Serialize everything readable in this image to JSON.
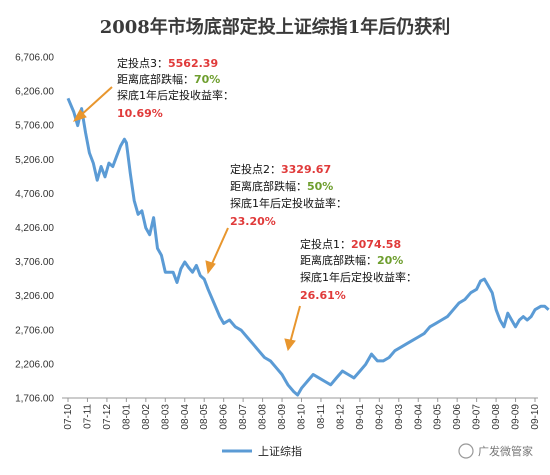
{
  "chart_data": {
    "type": "line",
    "title": "2008年市场底部定投上证综指1年后仍获利",
    "ylim": [
      1706,
      6706
    ],
    "yticks": [
      "1,706.00",
      "2,206.00",
      "2,706.00",
      "3,206.00",
      "3,706.00",
      "4,206.00",
      "4,706.00",
      "5,206.00",
      "5,706.00",
      "6,206.00",
      "6,706.00"
    ],
    "xticks": [
      "07-10",
      "07-11",
      "07-12",
      "08-01",
      "08-02",
      "08-03",
      "08-04",
      "08-05",
      "08-06",
      "08-07",
      "08-08",
      "08-09",
      "08-10",
      "08-11",
      "08-12",
      "09-01",
      "09-02",
      "09-03",
      "09-04",
      "09-05",
      "09-06",
      "09-07",
      "09-08",
      "09-09",
      "09-10"
    ],
    "grid": false,
    "legend": "bottom",
    "series": [
      {
        "name": "上证综指",
        "color": "#5b9bd5",
        "points": [
          [
            0,
            6100
          ],
          [
            0.3,
            5900
          ],
          [
            0.5,
            5700
          ],
          [
            0.7,
            5950
          ],
          [
            0.9,
            5600
          ],
          [
            1.1,
            5300
          ],
          [
            1.3,
            5150
          ],
          [
            1.5,
            4900
          ],
          [
            1.7,
            5100
          ],
          [
            1.9,
            4950
          ],
          [
            2.1,
            5150
          ],
          [
            2.3,
            5100
          ],
          [
            2.5,
            5250
          ],
          [
            2.7,
            5400
          ],
          [
            2.9,
            5500
          ],
          [
            3.0,
            5450
          ],
          [
            3.2,
            5000
          ],
          [
            3.4,
            4600
          ],
          [
            3.6,
            4400
          ],
          [
            3.8,
            4450
          ],
          [
            4.0,
            4200
          ],
          [
            4.2,
            4100
          ],
          [
            4.4,
            4350
          ],
          [
            4.6,
            3900
          ],
          [
            4.8,
            3800
          ],
          [
            5.0,
            3550
          ],
          [
            5.2,
            3550
          ],
          [
            5.4,
            3550
          ],
          [
            5.6,
            3400
          ],
          [
            5.8,
            3600
          ],
          [
            6.0,
            3700
          ],
          [
            6.2,
            3620
          ],
          [
            6.4,
            3550
          ],
          [
            6.6,
            3650
          ],
          [
            6.8,
            3500
          ],
          [
            7.0,
            3450
          ],
          [
            7.2,
            3300
          ],
          [
            7.5,
            3100
          ],
          [
            7.8,
            2900
          ],
          [
            8.0,
            2800
          ],
          [
            8.3,
            2850
          ],
          [
            8.6,
            2750
          ],
          [
            8.9,
            2700
          ],
          [
            9.2,
            2600
          ],
          [
            9.5,
            2500
          ],
          [
            9.8,
            2400
          ],
          [
            10.1,
            2300
          ],
          [
            10.4,
            2250
          ],
          [
            10.7,
            2150
          ],
          [
            11.0,
            2050
          ],
          [
            11.3,
            1900
          ],
          [
            11.6,
            1800
          ],
          [
            11.8,
            1750
          ],
          [
            12.0,
            1850
          ],
          [
            12.3,
            1950
          ],
          [
            12.6,
            2050
          ],
          [
            12.9,
            2000
          ],
          [
            13.2,
            1950
          ],
          [
            13.5,
            1900
          ],
          [
            13.8,
            2000
          ],
          [
            14.1,
            2100
          ],
          [
            14.4,
            2050
          ],
          [
            14.7,
            2000
          ],
          [
            15.0,
            2100
          ],
          [
            15.3,
            2200
          ],
          [
            15.6,
            2350
          ],
          [
            15.9,
            2250
          ],
          [
            16.2,
            2250
          ],
          [
            16.5,
            2300
          ],
          [
            16.8,
            2400
          ],
          [
            17.1,
            2450
          ],
          [
            17.4,
            2500
          ],
          [
            17.7,
            2550
          ],
          [
            18.0,
            2600
          ],
          [
            18.3,
            2650
          ],
          [
            18.6,
            2750
          ],
          [
            18.9,
            2800
          ],
          [
            19.2,
            2850
          ],
          [
            19.5,
            2900
          ],
          [
            19.8,
            3000
          ],
          [
            20.1,
            3100
          ],
          [
            20.4,
            3150
          ],
          [
            20.7,
            3250
          ],
          [
            21.0,
            3300
          ],
          [
            21.2,
            3420
          ],
          [
            21.4,
            3450
          ],
          [
            21.6,
            3350
          ],
          [
            21.8,
            3250
          ],
          [
            22.0,
            3000
          ],
          [
            22.2,
            2850
          ],
          [
            22.4,
            2750
          ],
          [
            22.6,
            2950
          ],
          [
            22.8,
            2850
          ],
          [
            23.0,
            2750
          ],
          [
            23.2,
            2850
          ],
          [
            23.4,
            2900
          ],
          [
            23.6,
            2850
          ],
          [
            23.8,
            2900
          ],
          [
            24.0,
            3000
          ],
          [
            24.3,
            3050
          ],
          [
            24.5,
            3050
          ],
          [
            24.7,
            3000
          ]
        ]
      }
    ],
    "annotations": [
      {
        "label": "定投点3：",
        "value": "5562.39",
        "drop_label": "距离底部跌幅：",
        "drop": "70%",
        "ret_label": "探底1年后定投收益率：",
        "ret": "10.69%"
      },
      {
        "label": "定投点2：",
        "value": "3329.67",
        "drop_label": "距离底部跌幅：",
        "drop": "50%",
        "ret_label": "探底1年后定投收益率：",
        "ret": "23.20%"
      },
      {
        "label": "定投点1：",
        "value": "2074.58",
        "drop_label": "距离底部跌幅：",
        "drop": "20%",
        "ret_label": "探底1年后定投收益率：",
        "ret": "26.61%"
      }
    ]
  },
  "watermark": "广发微管家"
}
